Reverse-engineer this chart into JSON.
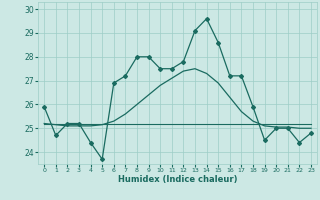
{
  "title": "",
  "xlabel": "Humidex (Indice chaleur)",
  "ylabel": "",
  "bg_color": "#cce8e4",
  "grid_color": "#9ecdc7",
  "line_color": "#1a6b60",
  "ylim": [
    23.5,
    30.3
  ],
  "xlim": [
    -0.5,
    23.5
  ],
  "yticks": [
    24,
    25,
    26,
    27,
    28,
    29,
    30
  ],
  "xticks": [
    0,
    1,
    2,
    3,
    4,
    5,
    6,
    7,
    8,
    9,
    10,
    11,
    12,
    13,
    14,
    15,
    16,
    17,
    18,
    19,
    20,
    21,
    22,
    23
  ],
  "humidex_values": [
    25.9,
    24.7,
    25.2,
    25.2,
    24.4,
    23.7,
    26.9,
    27.2,
    28.0,
    28.0,
    27.5,
    27.5,
    27.8,
    29.1,
    29.6,
    28.6,
    27.2,
    27.2,
    25.9,
    24.5,
    25.0,
    25.0,
    24.4,
    24.8
  ],
  "avg_values": [
    25.2,
    25.2,
    25.2,
    25.2,
    25.2,
    25.2,
    25.2,
    25.2,
    25.2,
    25.2,
    25.2,
    25.2,
    25.2,
    25.2,
    25.2,
    25.2,
    25.2,
    25.2,
    25.2,
    25.2,
    25.2,
    25.2,
    25.2,
    25.2
  ],
  "trend_values": [
    25.2,
    25.15,
    25.1,
    25.1,
    25.1,
    25.15,
    25.3,
    25.6,
    26.0,
    26.4,
    26.8,
    27.1,
    27.4,
    27.5,
    27.3,
    26.9,
    26.3,
    25.7,
    25.3,
    25.1,
    25.05,
    25.05,
    25.0,
    25.0
  ]
}
